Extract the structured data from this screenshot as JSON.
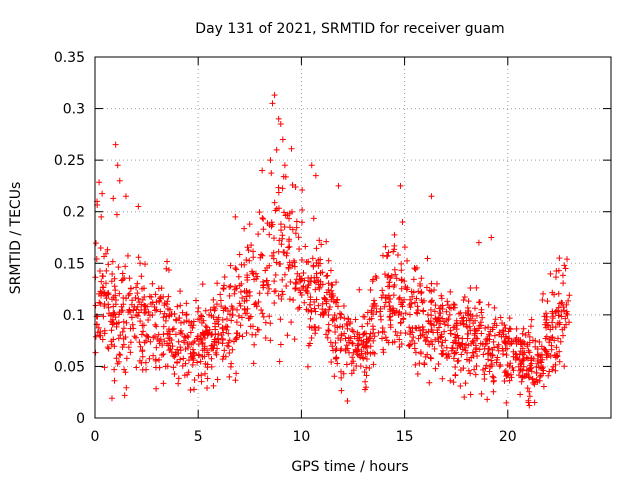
{
  "chart_data": {
    "type": "scatter",
    "title": "Day 131 of 2021, SRMTID for receiver guam",
    "xlabel": "GPS time / hours",
    "ylabel": "SRMTID / TECUs",
    "xlim": [
      0,
      25
    ],
    "ylim": [
      0,
      0.35
    ],
    "xticks": [
      0,
      5,
      10,
      15,
      20
    ],
    "xtick_labels": [
      "0",
      "5",
      "10",
      "15",
      "20"
    ],
    "yticks": [
      0,
      0.05,
      0.1,
      0.15,
      0.2,
      0.25,
      0.3,
      0.35
    ],
    "ytick_labels": [
      "0",
      "0.05",
      "0.1",
      "0.15",
      "0.2",
      "0.25",
      "0.3",
      "0.35"
    ],
    "grid": true,
    "marker": "plus",
    "series_color": "#ff0000",
    "x_range_of_data": [
      0,
      23
    ],
    "trend": [
      [
        0.0,
        0.13,
        0.035
      ],
      [
        0.5,
        0.12,
        0.035
      ],
      [
        1.0,
        0.105,
        0.035
      ],
      [
        1.5,
        0.1,
        0.032
      ],
      [
        2.0,
        0.095,
        0.03
      ],
      [
        2.5,
        0.092,
        0.028
      ],
      [
        3.0,
        0.09,
        0.026
      ],
      [
        3.5,
        0.085,
        0.025
      ],
      [
        4.0,
        0.078,
        0.022
      ],
      [
        4.5,
        0.075,
        0.02
      ],
      [
        5.0,
        0.072,
        0.02
      ],
      [
        5.5,
        0.075,
        0.02
      ],
      [
        6.0,
        0.085,
        0.022
      ],
      [
        6.5,
        0.1,
        0.026
      ],
      [
        7.0,
        0.115,
        0.028
      ],
      [
        7.5,
        0.125,
        0.03
      ],
      [
        8.0,
        0.135,
        0.033
      ],
      [
        8.5,
        0.15,
        0.04
      ],
      [
        9.0,
        0.16,
        0.045
      ],
      [
        9.5,
        0.15,
        0.04
      ],
      [
        10.0,
        0.14,
        0.035
      ],
      [
        10.5,
        0.13,
        0.03
      ],
      [
        11.0,
        0.12,
        0.028
      ],
      [
        11.5,
        0.1,
        0.026
      ],
      [
        12.0,
        0.08,
        0.024
      ],
      [
        12.5,
        0.07,
        0.02
      ],
      [
        13.0,
        0.075,
        0.02
      ],
      [
        13.5,
        0.085,
        0.022
      ],
      [
        14.0,
        0.11,
        0.025
      ],
      [
        14.5,
        0.13,
        0.03
      ],
      [
        15.0,
        0.12,
        0.03
      ],
      [
        15.5,
        0.1,
        0.026
      ],
      [
        16.0,
        0.09,
        0.024
      ],
      [
        16.5,
        0.085,
        0.022
      ],
      [
        17.0,
        0.08,
        0.022
      ],
      [
        17.5,
        0.075,
        0.02
      ],
      [
        18.0,
        0.075,
        0.02
      ],
      [
        18.5,
        0.08,
        0.022
      ],
      [
        19.0,
        0.07,
        0.02
      ],
      [
        19.5,
        0.065,
        0.02
      ],
      [
        20.0,
        0.06,
        0.018
      ],
      [
        20.5,
        0.058,
        0.018
      ],
      [
        21.0,
        0.055,
        0.018
      ],
      [
        21.5,
        0.06,
        0.018
      ],
      [
        22.0,
        0.08,
        0.022
      ],
      [
        22.5,
        0.1,
        0.025
      ],
      [
        23.0,
        0.105,
        0.025
      ]
    ],
    "notable_points": [
      [
        8.7,
        0.313
      ],
      [
        8.6,
        0.305
      ],
      [
        8.9,
        0.29
      ],
      [
        9.0,
        0.285
      ],
      [
        9.1,
        0.27
      ],
      [
        8.8,
        0.26
      ],
      [
        8.5,
        0.25
      ],
      [
        9.2,
        0.245
      ],
      [
        10.5,
        0.245
      ],
      [
        10.7,
        0.235
      ],
      [
        1.0,
        0.265
      ],
      [
        1.1,
        0.245
      ],
      [
        1.2,
        0.23
      ],
      [
        1.5,
        0.215
      ],
      [
        2.1,
        0.205
      ],
      [
        14.8,
        0.225
      ],
      [
        14.9,
        0.19
      ],
      [
        16.3,
        0.215
      ],
      [
        11.8,
        0.225
      ],
      [
        0.1,
        0.21
      ],
      [
        6.8,
        0.195
      ],
      [
        8.1,
        0.24
      ],
      [
        0.3,
        0.195
      ],
      [
        19.2,
        0.175
      ],
      [
        18.6,
        0.17
      ],
      [
        22.5,
        0.155
      ],
      [
        22.8,
        0.145
      ],
      [
        21.0,
        0.015
      ],
      [
        21.3,
        0.015
      ],
      [
        19.0,
        0.018
      ]
    ],
    "n_points": 1700,
    "seed": 131
  }
}
